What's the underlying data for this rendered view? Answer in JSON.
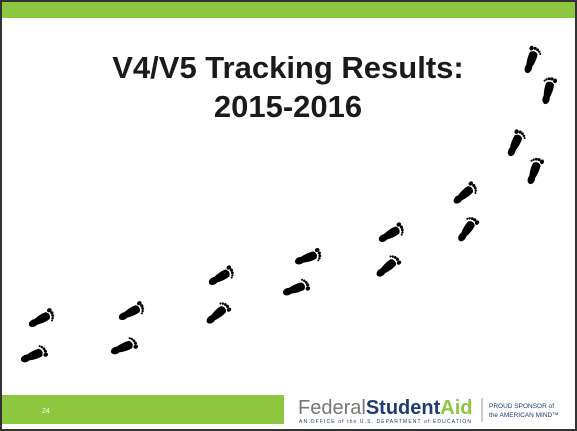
{
  "header": {
    "title_lines": [
      "V4/V5 Tracking Results:",
      "2015-2016"
    ]
  },
  "footer": {
    "page_number": "24",
    "logo": {
      "name_light": "Federal",
      "name_bold": "Student",
      "name_accent": "Aid",
      "tagline": "AN OFFICE of the U.S. DEPARTMENT of EDUCATION"
    },
    "sponsor": {
      "line1": "PROUD SPONSOR of",
      "line2": "the AMERICAN MIND™"
    }
  }
}
